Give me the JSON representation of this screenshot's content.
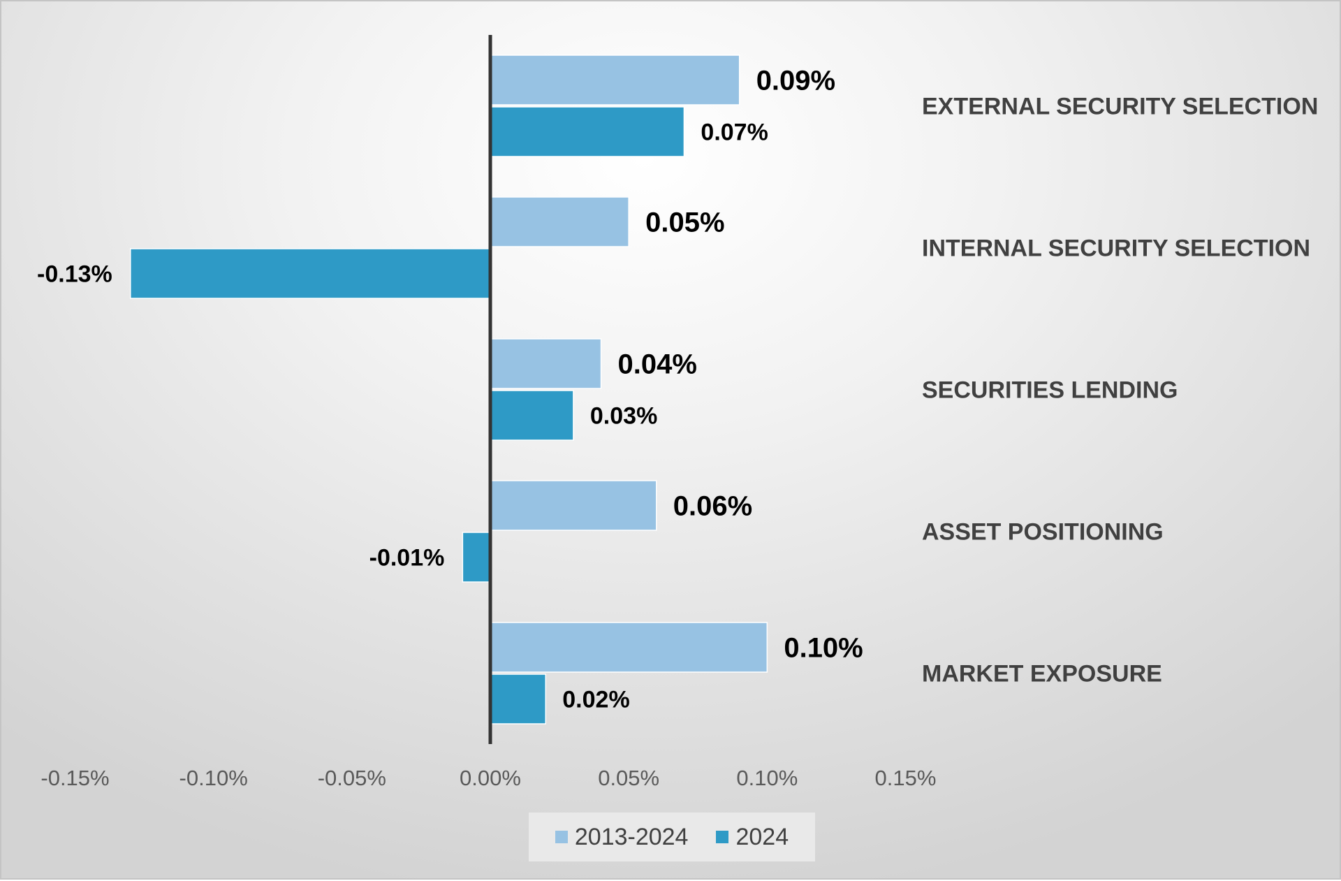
{
  "chart_data": {
    "type": "bar",
    "orientation": "horizontal",
    "categories": [
      "EXTERNAL SECURITY SELECTION",
      "INTERNAL SECURITY SELECTION",
      "SECURITIES LENDING",
      "ASSET POSITIONING",
      "MARKET EXPOSURE"
    ],
    "series": [
      {
        "name": "2013-2024",
        "color": "#97C2E3",
        "values": [
          0.09,
          0.05,
          0.04,
          0.06,
          0.1
        ],
        "labels": [
          "0.09%",
          "0.05%",
          "0.04%",
          "0.06%",
          "0.10%"
        ]
      },
      {
        "name": "2024",
        "color": "#2E9AC6",
        "values": [
          0.07,
          -0.13,
          0.03,
          -0.01,
          0.02
        ],
        "labels": [
          "0.07%",
          "-0.13%",
          "0.03%",
          "-0.01%",
          "0.02%"
        ]
      }
    ],
    "xlim": [
      -0.15,
      0.15
    ],
    "x_ticks": [
      -0.15,
      -0.1,
      -0.05,
      0.0,
      0.05,
      0.1,
      0.15
    ],
    "x_tick_labels": [
      "-0.15%",
      "-0.10%",
      "-0.05%",
      "0.00%",
      "0.05%",
      "0.10%",
      "0.15%"
    ],
    "category_labels_position": "right",
    "grid": false,
    "legend_position": "bottom",
    "title": "",
    "xlabel": "",
    "ylabel": ""
  }
}
